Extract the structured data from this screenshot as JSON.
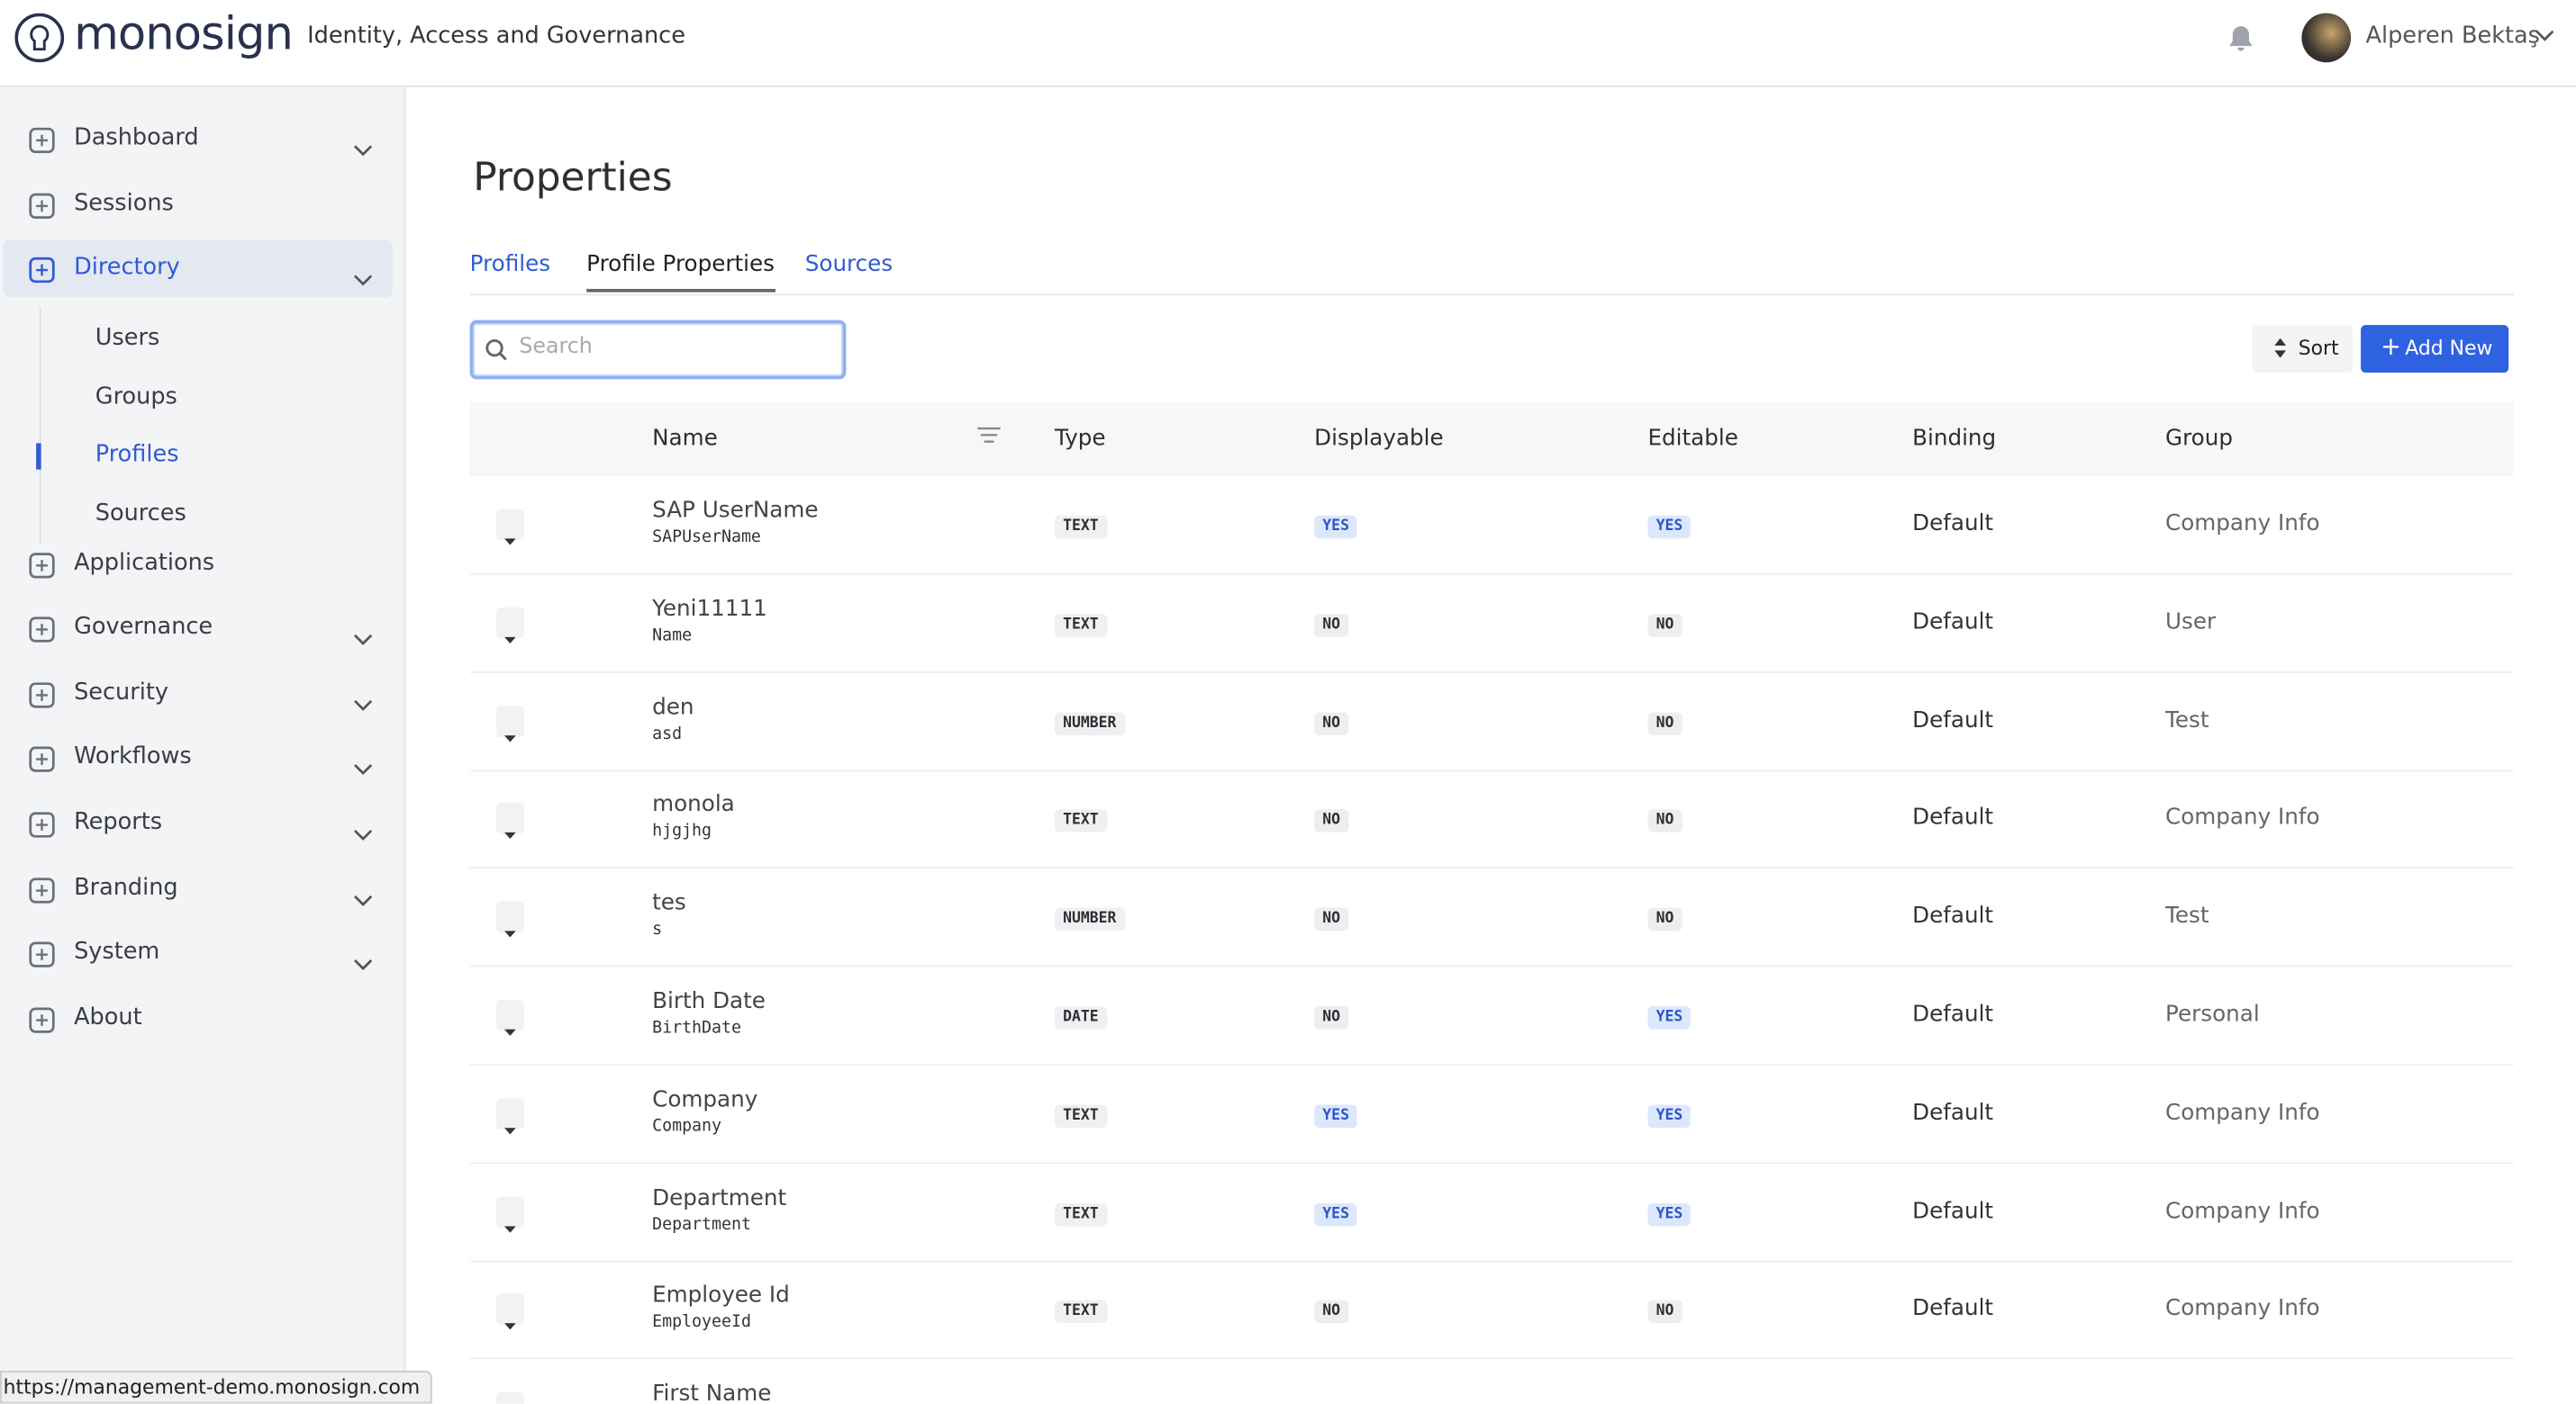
{
  "header": {
    "brand": "monosign",
    "tagline": "Identity, Access and Governance",
    "user": "Alperen Bektaş"
  },
  "sidebar": {
    "items": [
      {
        "label": "Dashboard",
        "expandable": true
      },
      {
        "label": "Sessions",
        "expandable": false
      },
      {
        "label": "Directory",
        "expandable": true,
        "active": true,
        "children": [
          {
            "label": "Users"
          },
          {
            "label": "Groups"
          },
          {
            "label": "Profiles",
            "active": true
          },
          {
            "label": "Sources"
          }
        ]
      },
      {
        "label": "Applications",
        "expandable": false
      },
      {
        "label": "Governance",
        "expandable": true
      },
      {
        "label": "Security",
        "expandable": true
      },
      {
        "label": "Workflows",
        "expandable": true
      },
      {
        "label": "Reports",
        "expandable": true
      },
      {
        "label": "Branding",
        "expandable": true
      },
      {
        "label": "System",
        "expandable": true
      },
      {
        "label": "About",
        "expandable": false
      }
    ]
  },
  "page": {
    "title": "Properties",
    "tabs": [
      {
        "label": "Profiles"
      },
      {
        "label": "Profile Properties",
        "active": true
      },
      {
        "label": "Sources"
      }
    ],
    "search_placeholder": "Search",
    "sort_button": "Sort",
    "add_button": "Add New"
  },
  "table": {
    "columns": [
      "Name",
      "Type",
      "Displayable",
      "Editable",
      "Binding",
      "Group"
    ],
    "badge_colors": {
      "YES": {
        "bg": "#dce7fb",
        "fg": "#2b55c9"
      },
      "NO": {
        "bg": "#eeeef0",
        "fg": "#2d2f33"
      }
    },
    "rows": [
      {
        "name": "SAP UserName",
        "key": "SAPUserName",
        "type": "TEXT",
        "displayable": "YES",
        "editable": "YES",
        "binding": "Default",
        "group": "Company Info"
      },
      {
        "name": "Yeni11111",
        "key": "Name",
        "type": "TEXT",
        "displayable": "NO",
        "editable": "NO",
        "binding": "Default",
        "group": "User"
      },
      {
        "name": "den",
        "key": "asd",
        "type": "NUMBER",
        "displayable": "NO",
        "editable": "NO",
        "binding": "Default",
        "group": "Test"
      },
      {
        "name": "monola",
        "key": "hjgjhg",
        "type": "TEXT",
        "displayable": "NO",
        "editable": "NO",
        "binding": "Default",
        "group": "Company Info"
      },
      {
        "name": "tes",
        "key": "s",
        "type": "NUMBER",
        "displayable": "NO",
        "editable": "NO",
        "binding": "Default",
        "group": "Test"
      },
      {
        "name": "Birth Date",
        "key": "BirthDate",
        "type": "DATE",
        "displayable": "NO",
        "editable": "YES",
        "binding": "Default",
        "group": "Personal"
      },
      {
        "name": "Company",
        "key": "Company",
        "type": "TEXT",
        "displayable": "YES",
        "editable": "YES",
        "binding": "Default",
        "group": "Company Info"
      },
      {
        "name": "Department",
        "key": "Department",
        "type": "TEXT",
        "displayable": "YES",
        "editable": "YES",
        "binding": "Default",
        "group": "Company Info"
      },
      {
        "name": "Employee Id",
        "key": "EmployeeId",
        "type": "TEXT",
        "displayable": "NO",
        "editable": "NO",
        "binding": "Default",
        "group": "Company Info"
      },
      {
        "name": "First Name"
      }
    ]
  },
  "status_bar": "https://management-demo.monosign.com"
}
